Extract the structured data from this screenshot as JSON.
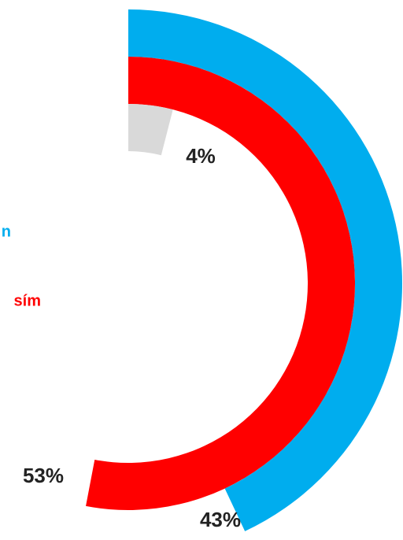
{
  "chart_data": {
    "type": "radial_bar",
    "series": [
      {
        "name": "n",
        "color": "#00adee",
        "values": [
          43
        ],
        "value_labels": [
          "43%"
        ]
      },
      {
        "name": "sím",
        "color": "#ff0000",
        "values": [
          53
        ],
        "value_labels": [
          "53%"
        ]
      },
      {
        "color": "#d9d9d9",
        "values": [
          4
        ],
        "value_labels": [
          "4%"
        ]
      }
    ],
    "max": 100
  }
}
